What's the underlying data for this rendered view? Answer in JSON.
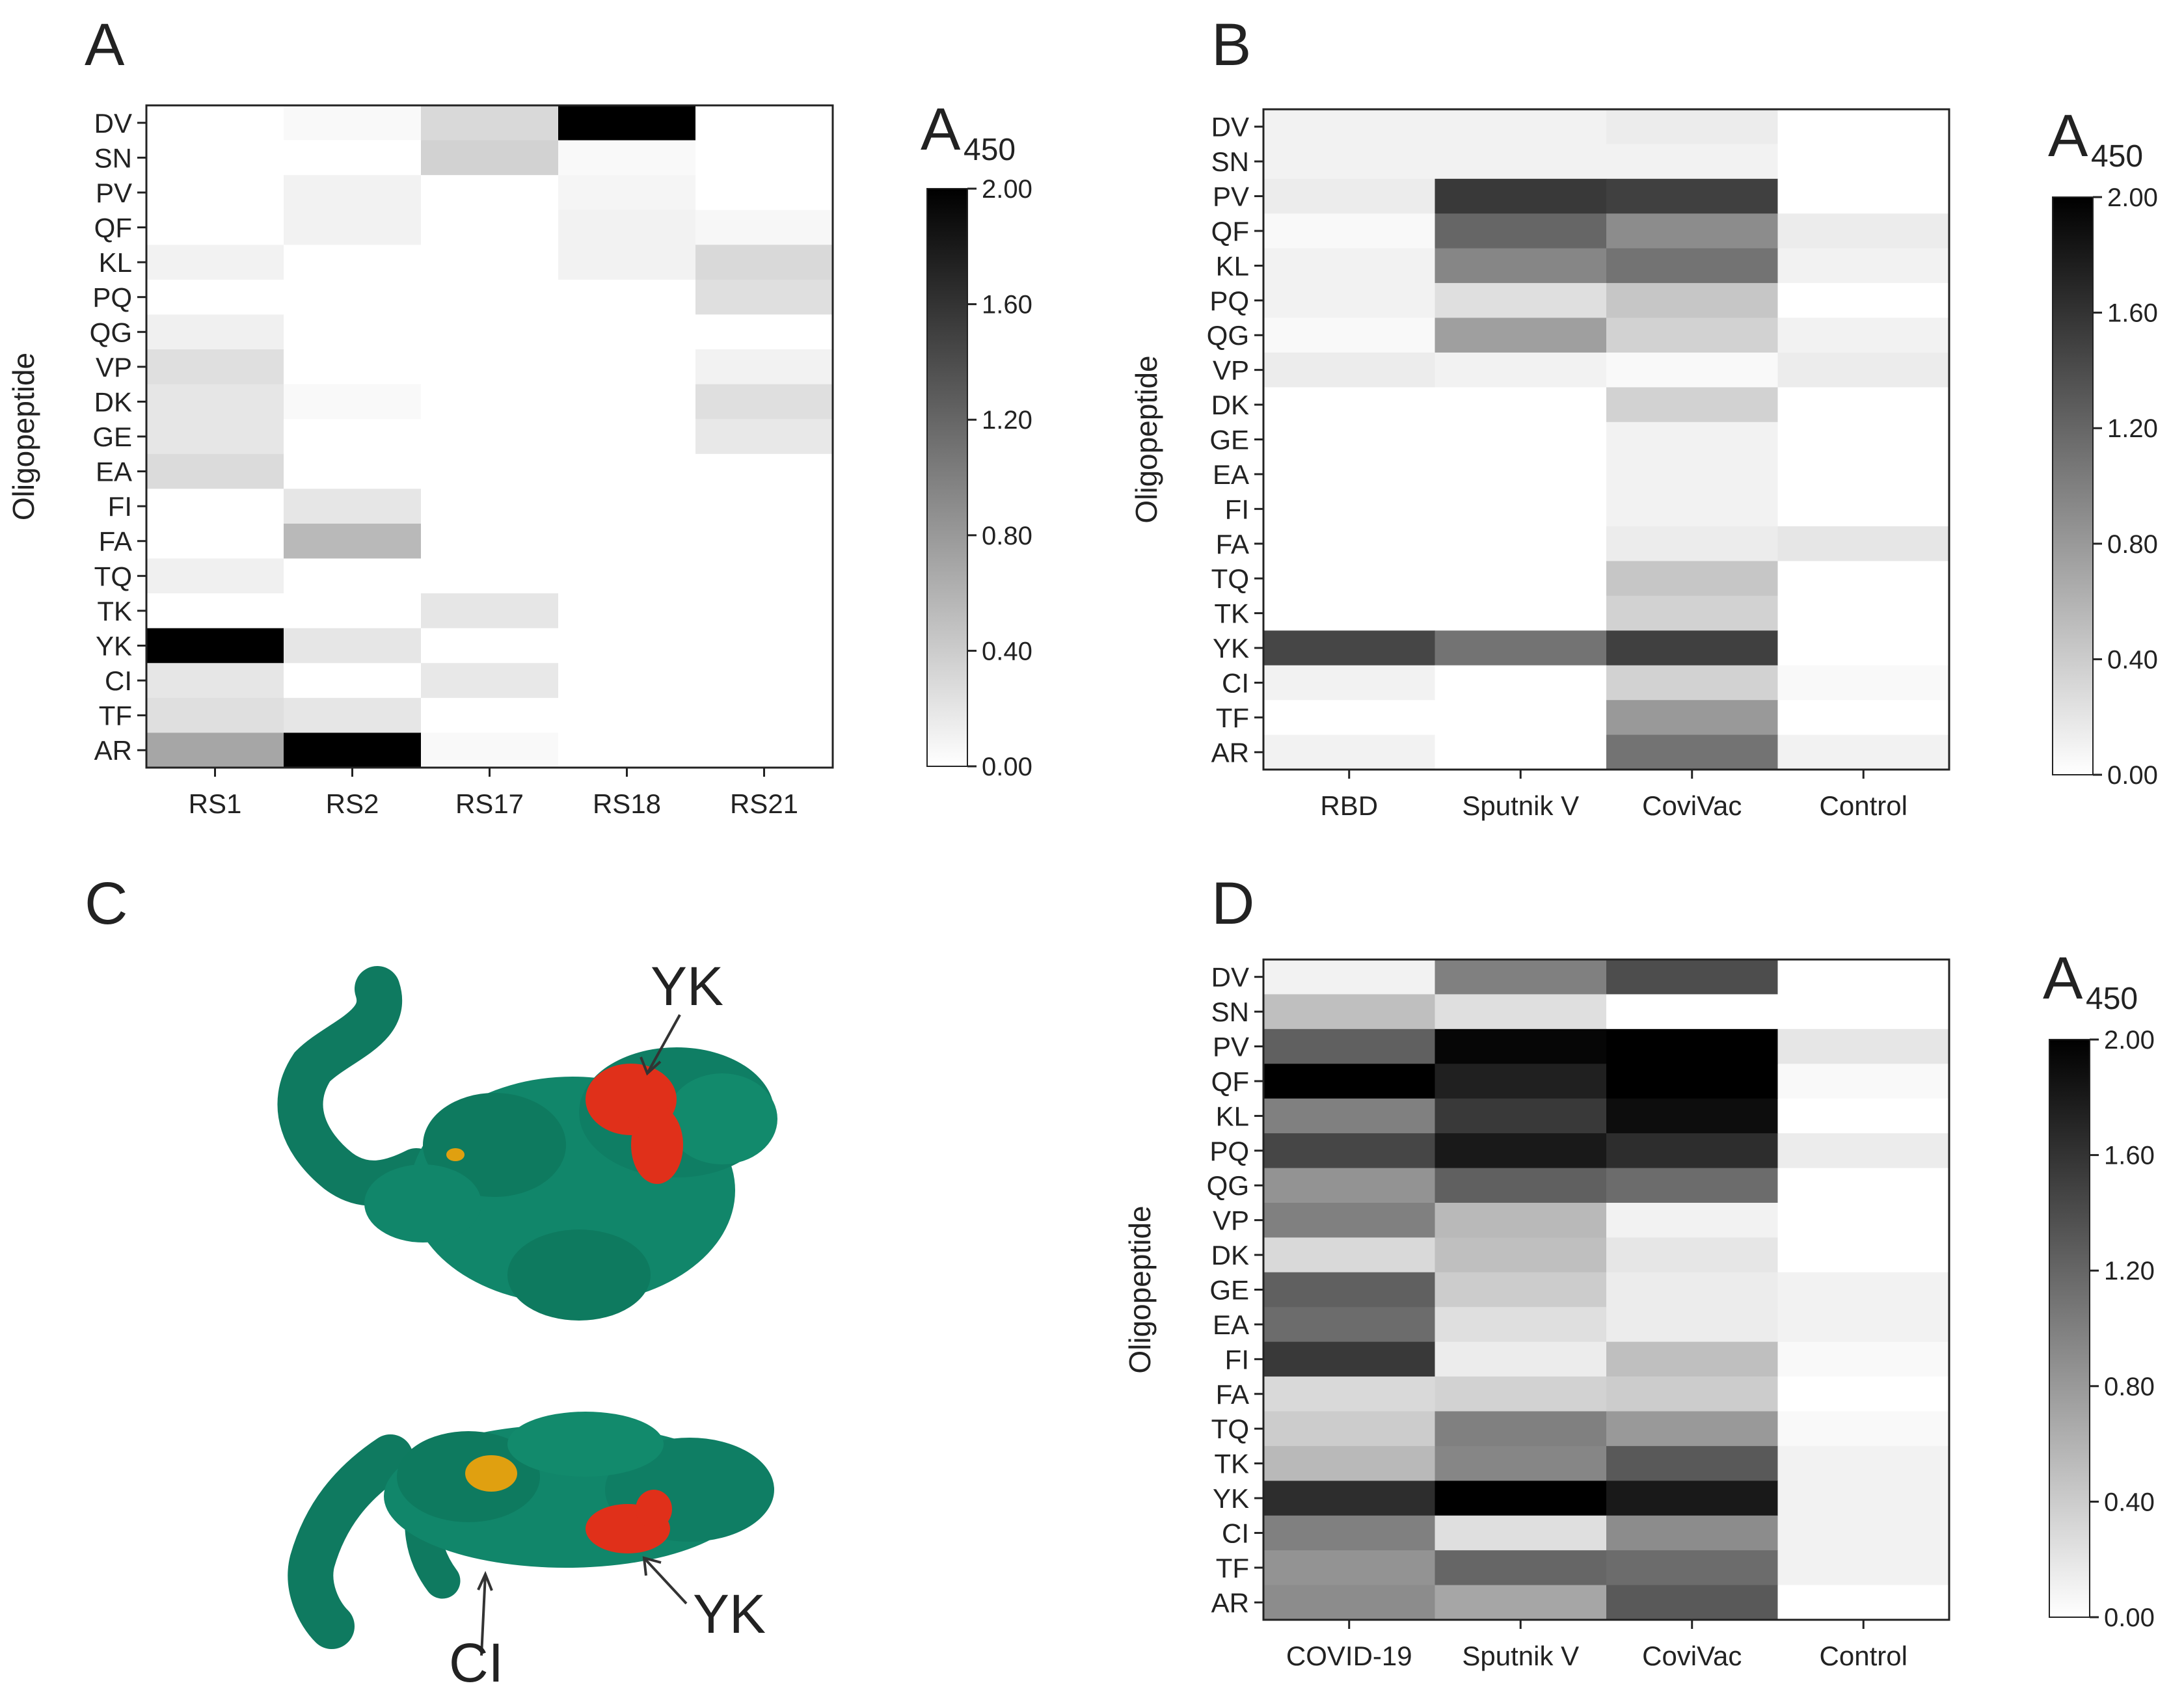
{
  "panels": {
    "A": {
      "letter": "A"
    },
    "B": {
      "letter": "B"
    },
    "C": {
      "letter": "C",
      "annotations": [
        "YK",
        "YK",
        "CI"
      ]
    },
    "D": {
      "letter": "D"
    }
  },
  "colors": {
    "protein": "#11866a",
    "protein_dark": "#0a6a52",
    "highlight_yk": "#e0301a",
    "highlight_site": "#e0a010",
    "heat_low": "#ffffff",
    "heat_high": "#000000"
  },
  "chart_data": [
    {
      "id": "A",
      "type": "heatmap",
      "ylabel": "Oligopeptide",
      "rows": [
        "DV",
        "SN",
        "PV",
        "QF",
        "KL",
        "PQ",
        "QG",
        "VP",
        "DK",
        "GE",
        "EA",
        "FI",
        "FA",
        "TQ",
        "TK",
        "YK",
        "CI",
        "TF",
        "AR"
      ],
      "columns": [
        "RS1",
        "RS2",
        "RS17",
        "RS18",
        "RS21"
      ],
      "values": [
        [
          0.0,
          0.05,
          0.3,
          2.0,
          0.0
        ],
        [
          0.0,
          0.0,
          0.35,
          0.05,
          0.0
        ],
        [
          0.0,
          0.1,
          0.0,
          0.08,
          0.0
        ],
        [
          0.0,
          0.1,
          0.0,
          0.1,
          0.06
        ],
        [
          0.1,
          0.0,
          0.0,
          0.1,
          0.3
        ],
        [
          0.0,
          0.0,
          0.0,
          0.0,
          0.25
        ],
        [
          0.12,
          0.0,
          0.0,
          0.0,
          0.0
        ],
        [
          0.25,
          0.0,
          0.0,
          0.0,
          0.1
        ],
        [
          0.2,
          0.05,
          0.0,
          0.0,
          0.25
        ],
        [
          0.2,
          0.0,
          0.0,
          0.0,
          0.18
        ],
        [
          0.28,
          0.0,
          0.0,
          0.0,
          0.0
        ],
        [
          0.0,
          0.2,
          0.0,
          0.0,
          0.0
        ],
        [
          0.0,
          0.55,
          0.0,
          0.0,
          0.0
        ],
        [
          0.12,
          0.0,
          0.0,
          0.0,
          0.0
        ],
        [
          0.0,
          0.0,
          0.2,
          0.0,
          0.0
        ],
        [
          2.0,
          0.2,
          0.0,
          0.0,
          0.0
        ],
        [
          0.2,
          0.0,
          0.18,
          0.0,
          0.0
        ],
        [
          0.25,
          0.2,
          0.0,
          0.0,
          0.0
        ],
        [
          0.7,
          2.0,
          0.05,
          0.0,
          0.0
        ]
      ],
      "colorbar": {
        "title": "A",
        "subscript": "450",
        "range": [
          0,
          2.0
        ],
        "ticks": [
          "2.00",
          "1.60",
          "1.20",
          "0.80",
          "0.40",
          "0.00"
        ]
      }
    },
    {
      "id": "B",
      "type": "heatmap",
      "ylabel": "Oligopeptide",
      "rows": [
        "DV",
        "SN",
        "PV",
        "QF",
        "KL",
        "PQ",
        "QG",
        "VP",
        "DK",
        "GE",
        "EA",
        "FI",
        "FA",
        "TQ",
        "TK",
        "YK",
        "CI",
        "TF",
        "AR"
      ],
      "columns": [
        "RBD",
        "Sputnik V",
        "CoviVac",
        "Control"
      ],
      "values": [
        [
          0.1,
          0.1,
          0.15,
          0.0
        ],
        [
          0.1,
          0.1,
          0.1,
          0.0
        ],
        [
          0.15,
          1.55,
          1.5,
          0.0
        ],
        [
          0.05,
          1.2,
          0.9,
          0.15
        ],
        [
          0.1,
          0.95,
          1.1,
          0.1
        ],
        [
          0.1,
          0.25,
          0.45,
          0.0
        ],
        [
          0.05,
          0.75,
          0.35,
          0.1
        ],
        [
          0.15,
          0.1,
          0.05,
          0.15
        ],
        [
          0.0,
          0.0,
          0.35,
          0.0
        ],
        [
          0.0,
          0.0,
          0.1,
          0.0
        ],
        [
          0.0,
          0.0,
          0.1,
          0.0
        ],
        [
          0.0,
          0.0,
          0.1,
          0.0
        ],
        [
          0.0,
          0.0,
          0.15,
          0.2
        ],
        [
          0.0,
          0.0,
          0.45,
          0.0
        ],
        [
          0.0,
          0.0,
          0.35,
          0.0
        ],
        [
          1.45,
          1.1,
          1.5,
          0.0
        ],
        [
          0.1,
          0.0,
          0.35,
          0.05
        ],
        [
          0.0,
          0.0,
          0.8,
          0.0
        ],
        [
          0.1,
          0.0,
          1.1,
          0.1
        ]
      ],
      "colorbar": {
        "title": "A",
        "subscript": "450",
        "range": [
          0,
          2.0
        ],
        "ticks": [
          "2.00",
          "1.60",
          "1.20",
          "0.80",
          "0.40",
          "0.00"
        ]
      }
    },
    {
      "id": "D",
      "type": "heatmap",
      "ylabel": "Oligopeptide",
      "rows": [
        "DV",
        "SN",
        "PV",
        "QF",
        "KL",
        "PQ",
        "QG",
        "VP",
        "DK",
        "GE",
        "EA",
        "FI",
        "FA",
        "TQ",
        "TK",
        "YK",
        "CI",
        "TF",
        "AR"
      ],
      "columns": [
        "COVID-19",
        "Sputnik V",
        "CoviVac",
        "Control"
      ],
      "values": [
        [
          0.1,
          1.0,
          1.4,
          0.0
        ],
        [
          0.5,
          0.25,
          0.0,
          0.0
        ],
        [
          1.25,
          1.95,
          2.0,
          0.2
        ],
        [
          2.0,
          1.75,
          2.0,
          0.05
        ],
        [
          1.0,
          1.55,
          1.9,
          0.0
        ],
        [
          1.45,
          1.8,
          1.65,
          0.15
        ],
        [
          0.85,
          1.25,
          1.15,
          0.0
        ],
        [
          1.0,
          0.55,
          0.1,
          0.0
        ],
        [
          0.3,
          0.5,
          0.2,
          0.0
        ],
        [
          1.25,
          0.4,
          0.15,
          0.1
        ],
        [
          1.15,
          0.25,
          0.15,
          0.1
        ],
        [
          1.55,
          0.15,
          0.5,
          0.05
        ],
        [
          0.3,
          0.35,
          0.4,
          0.0
        ],
        [
          0.4,
          1.0,
          0.8,
          0.05
        ],
        [
          0.55,
          0.95,
          1.3,
          0.1
        ],
        [
          1.65,
          2.0,
          1.8,
          0.1
        ],
        [
          1.0,
          0.25,
          0.9,
          0.1
        ],
        [
          0.85,
          1.2,
          1.15,
          0.1
        ],
        [
          0.9,
          0.7,
          1.3,
          0.0
        ]
      ],
      "colorbar": {
        "title": "A",
        "subscript": "450",
        "range": [
          0,
          2.0
        ],
        "ticks": [
          "2.00",
          "1.60",
          "1.20",
          "0.80",
          "0.40",
          "0.00"
        ]
      }
    }
  ]
}
